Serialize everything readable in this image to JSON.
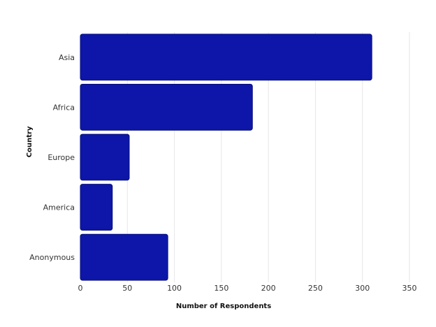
{
  "chart_data": {
    "type": "bar",
    "orientation": "horizontal",
    "title": "",
    "xlabel": "Number of Respondents",
    "ylabel": "Country",
    "categories": [
      "Asia",
      "Africa",
      "Europe",
      "America",
      "Anonymous"
    ],
    "values": [
      310,
      183,
      52,
      34,
      93
    ],
    "xlim": [
      0,
      350
    ],
    "xticks": [
      0,
      50,
      100,
      150,
      200,
      250,
      300,
      350
    ],
    "grid": "vertical",
    "legend": "none",
    "colors": {
      "bar_fill": "#0d16a8",
      "bar_stroke": "#08107a",
      "grid": "#e6e6e6"
    }
  }
}
